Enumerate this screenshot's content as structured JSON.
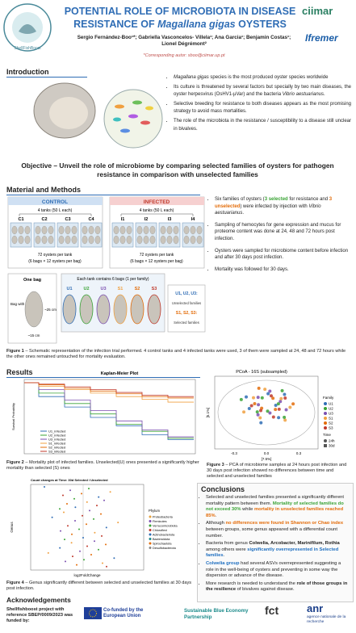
{
  "header": {
    "logo": "ShellFishBoost",
    "title_line1": "POTENTIAL ROLE OF MICROBIOTA IN DISEASE",
    "title_line2": [
      "RESISTANCE OF ",
      "Magallana gigas",
      " OYSTERS"
    ],
    "authors": "Sergio Fernández-Boo¹*; Gabriella Vasconcelos- Villela¹; Ana Garcia¹; Benjamin Costas¹; Lionel Dégrémont²",
    "corresponding": [
      "*Corresponding autor: ",
      "sboo@ciimar.up.pt"
    ],
    "logo_right_1": "ciimar",
    "logo_right_2": "Ifremer"
  },
  "intro": {
    "heading": "Introduction",
    "bullets": [
      [
        "Magallana gigas",
        " species is the most produced oyster species worldwide"
      ],
      [
        "Its culture is threatened by several factors but specially by two main diseases, the oyster herpesvirus (OsHV1-µVar) and the bacteria ",
        "Vibrio aestuarianus",
        "."
      ],
      [
        "Selective breeding for resistance to both diseases appears as the most promising strategy to avoid mass mortalities."
      ],
      [
        "The role of the microbiota in the resistance / susceptibility to a disease still unclear in bivalves."
      ]
    ]
  },
  "objective": "Objective – Unveil the role of microbiome by comparing selected families of oysters for pathogen resistance in comparison with unselected families",
  "methods": {
    "heading": "Material and Methods",
    "control": {
      "label": "CONTROL",
      "tanks_text": "4 tanks (50 L each)",
      "tanks": [
        "C1",
        "C2",
        "C3",
        "C4"
      ],
      "per_tank": "72 oysters per tank",
      "bags": "(6 bags × 12 oysters per bag)"
    },
    "infected": {
      "label": "INFECTED",
      "tanks_text": "4 tanks (50 L each)",
      "tanks": [
        "I1",
        "I2",
        "I3",
        "I4"
      ],
      "per_tank": "72 oysters per tank",
      "bags": "(6 bags × 12 oysters per bag)"
    },
    "one_bag": "One bag",
    "bag_text": "Bag with 12 oysters",
    "bag_height": "~25 cm",
    "bag_width": "~15 cm",
    "each_tank": "Each tank contains 6 bags (1 per family)",
    "families": [
      "U1",
      "U2",
      "U3",
      "S1",
      "S2",
      "S3"
    ],
    "legend": [
      "U1, U2, U3:",
      "Unselected families",
      "S1, S2, S3:",
      "Selected families"
    ],
    "bullets": [
      [
        "Six families of oysters (",
        "3 selected",
        " for resistance and ",
        "3 unselected",
        ") were infected by injection with ",
        "Vibrio aestuarianus",
        "."
      ],
      [
        "Sampling of hemocytes for gene expression and mucus for proteome content was done at 24, 48 and 72 hours post infection."
      ],
      [
        "Oysters were sampled for microbiome content before infection and after 30 days post infection."
      ],
      [
        "Mortality was followed for 30 days."
      ]
    ],
    "caption": [
      "Figure 1",
      " – Schematic representation of the infection trial performed. 4 control tanks and 4 infected tanks were used, 3 of them were sampled at 24, 48 and 72 hours while the other ones remained untouched for mortality evaluation."
    ]
  },
  "results": {
    "heading": "Results",
    "km": {
      "title": "Kaplan-Meier Plot",
      "ylabel": "Survival Probability",
      "legend": [
        "U1_infected",
        "U2_infected",
        "U3_infected",
        "S1_infected",
        "S2_infected",
        "S3_infected"
      ]
    },
    "pcoa": {
      "title": "PCoA - 16S (subsampled)",
      "xlabel": "[7.5%]",
      "ylabel": "[5.1%]",
      "xticks": [
        "-0.3",
        "0.0",
        "0.3"
      ],
      "legend_family": "Family",
      "families": [
        "U1",
        "U2",
        "U3",
        "S1",
        "S2",
        "S3"
      ],
      "legend_time": "Time",
      "times": [
        "24h",
        "30d"
      ]
    },
    "fig2": [
      "Figure 2",
      " – Mortality plot of infected families. Unselected(U) ones presented a significantly higher mortality than selected (S) ones"
    ],
    "fig3": [
      "Figure 3",
      " – PCA of microbiome samples at 24 hours post infection and 30 days post infection showed no differences between time and selected and unselected families"
    ],
    "fig4_chart": {
      "title": "Count changes at Time: 30d  Selected / Unselected",
      "xlabel": "log2FoldChange",
      "ylabel": "Genus",
      "legend_title": "Phylum",
      "legend": [
        "Proteobacteria",
        "Firmicutes",
        "Verrucomicrobiota",
        "Chloroflexi",
        "Actinobacteriota",
        "Bacteroidota",
        "Spirochaetota",
        "Desulfobacterota"
      ]
    },
    "fig4": [
      "Figure 4",
      " – Genus significantly different between selected and unselected families at 30 days post infection."
    ]
  },
  "conclusions": {
    "heading": "Conclusions",
    "bullets": [
      [
        "Selected and unselected families presented a significantly different mortality pattern between them. ",
        "Mortality of selected families do not exceed 30%",
        " while ",
        "mortality in unselected families reached 85%",
        "."
      ],
      [
        "Although ",
        "no differences were found in Shannon or Chao index",
        " between groups, some genus appeared with a differential count number."
      ],
      [
        "Bacteria from genus ",
        "Colwelia, Arcobacter, Marinifilum, Rothia",
        " among others were ",
        "significantly overrepresented in Selected families",
        "."
      ],
      [
        "Colwelia group",
        " had several ASVs overrepresented suggesting a role in the well-being of oysters and preventing in some way the dispersion or advance of the disease."
      ],
      [
        "More research is needed to understand the ",
        "role of those groups in the resilience",
        " of bivalves against disease."
      ]
    ]
  },
  "ack": {
    "heading": "Acknowledgements",
    "text": "Shellfishboost project with reference SBEP/0009/2023 was funded by:",
    "eu": "Co-funded by the European Union",
    "sbep": "Sustainable Blue Economy Partnership",
    "fct": "fct",
    "anr": "anr",
    "anr_sub": "agence nationale de la recherche"
  }
}
